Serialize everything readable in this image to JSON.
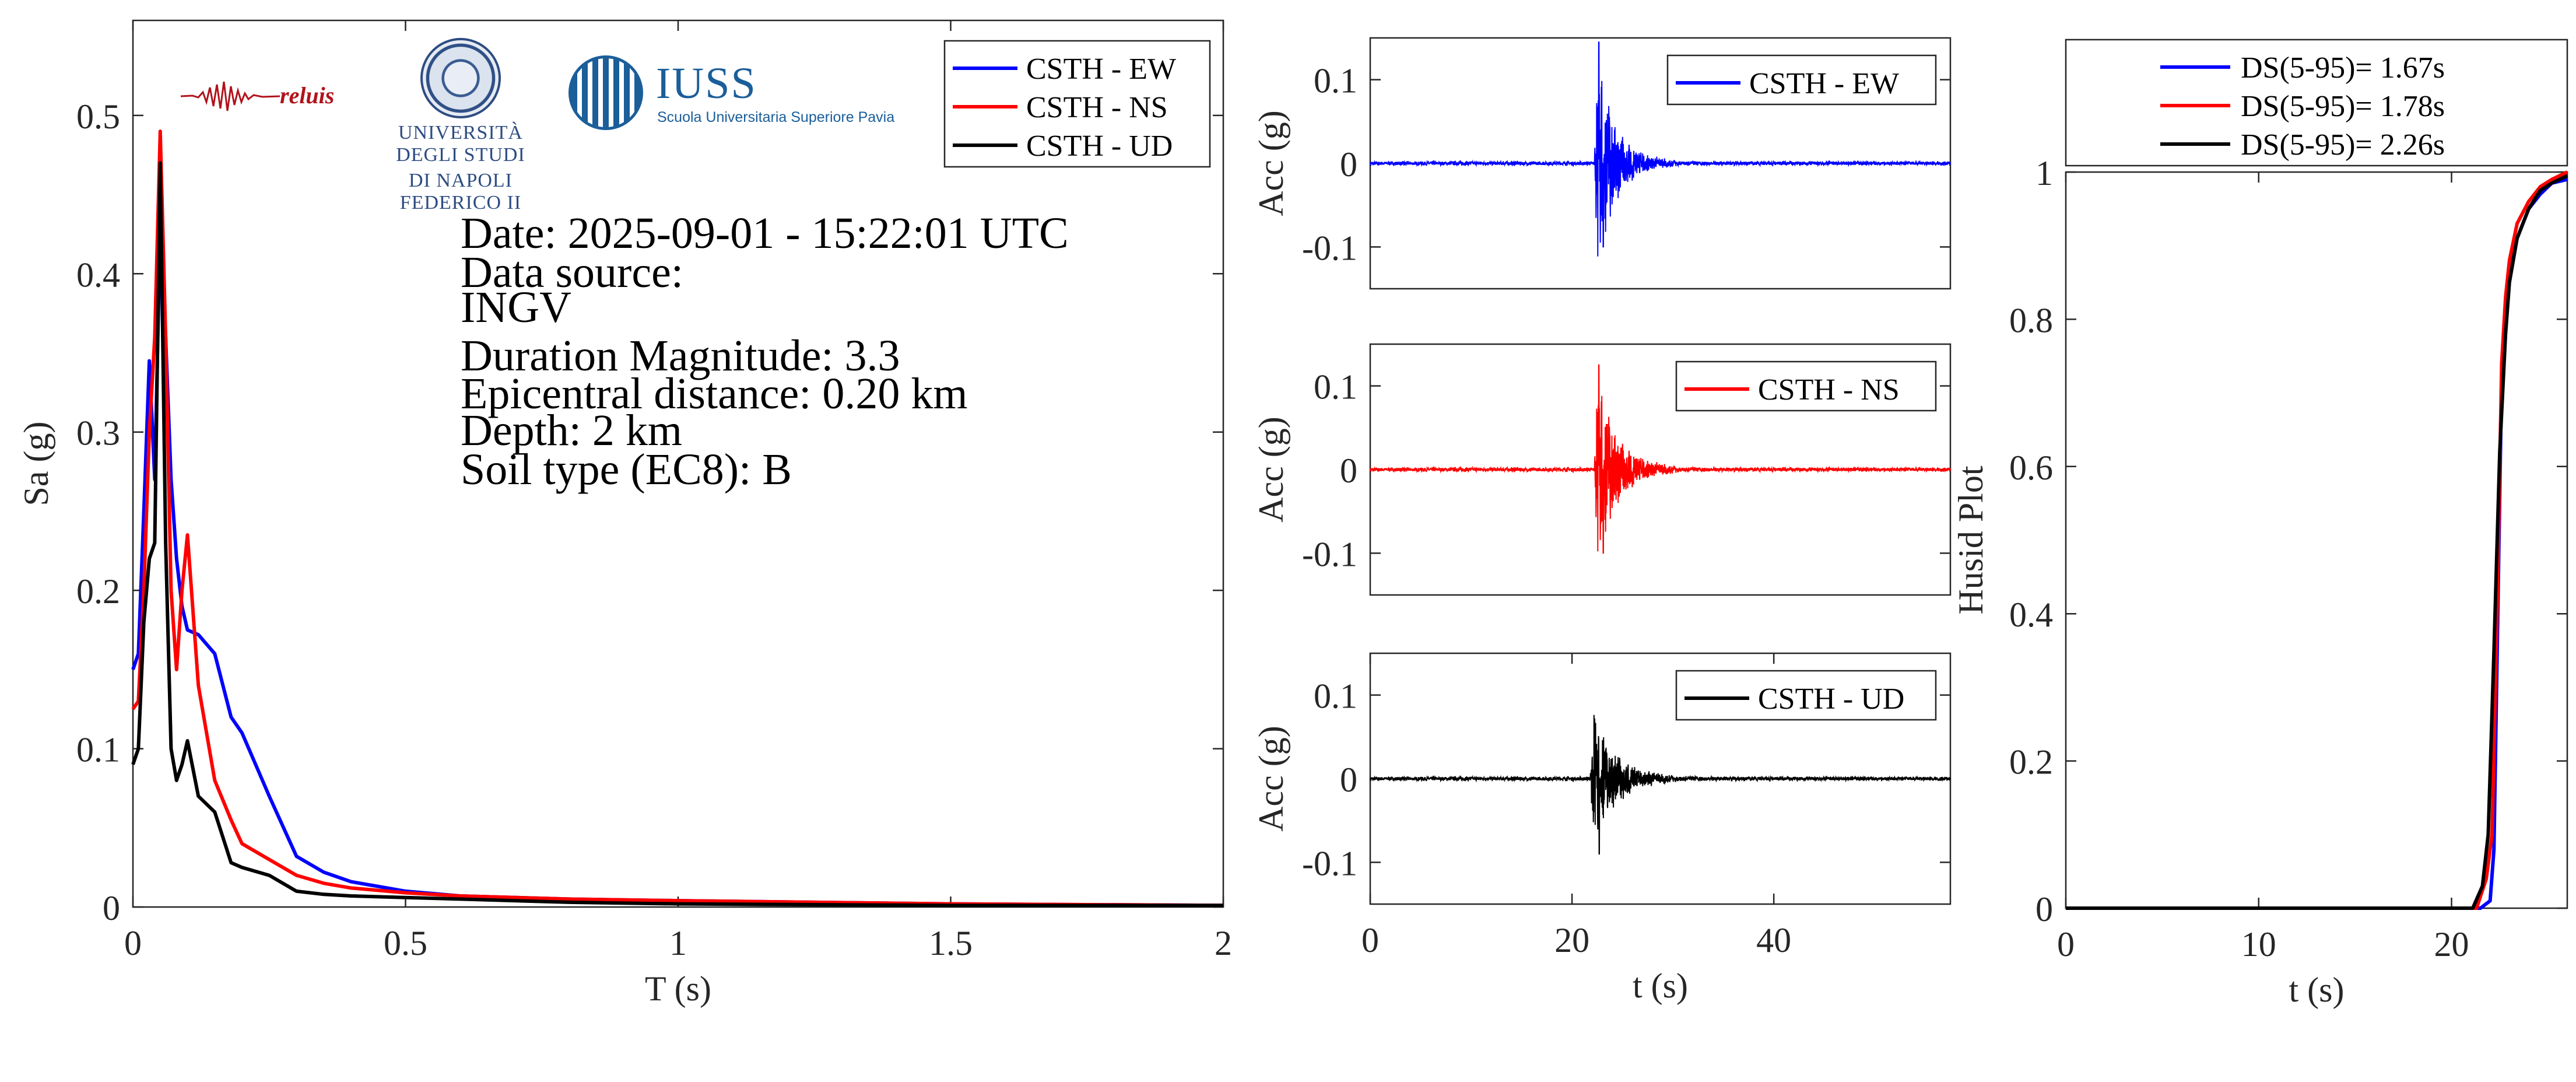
{
  "page": {
    "background": "#ffffff"
  },
  "logos": {
    "reluis": {
      "name": "reluis-logo",
      "text": "reluis"
    },
    "unina": {
      "name": "unina-logo",
      "text_line1": "UNIVERSITÀ DEGLI STUDI",
      "text_line2": "DI NAPOLI FEDERICO II"
    },
    "iuss": {
      "name": "iuss-logo",
      "text": "IUSS",
      "subtitle": "Scuola Universitaria Superiore Pavia"
    }
  },
  "colors": {
    "EW": "#0000ff",
    "NS": "#ff0000",
    "UD": "#000000"
  },
  "chart_data": [
    {
      "id": "response-spectrum",
      "type": "line",
      "xlabel": "T (s)",
      "ylabel": "Sa (g)",
      "xlim": [
        0,
        2
      ],
      "ylim": [
        0,
        0.56
      ],
      "xticks": [
        0,
        0.5,
        1,
        1.5,
        2
      ],
      "xtick_labels": [
        "0",
        "0.5",
        "1",
        "1.5",
        "2"
      ],
      "yticks": [
        0,
        0.1,
        0.2,
        0.3,
        0.4,
        0.5
      ],
      "ytick_labels": [
        "0",
        "0.1",
        "0.2",
        "0.3",
        "0.4",
        "0.5"
      ],
      "grid": false,
      "legend_position": "top-right",
      "annotations": [
        "Date: 2025-09-01 - 15:22:01 UTC",
        "Data source:",
        "INGV",
        "Duration Magnitude: 3.3",
        "Epicentral distance: 0.20 km",
        "Depth: 2 km",
        "Soil type (EC8): B"
      ],
      "series": [
        {
          "name": "CSTH - EW",
          "color": "#0000ff",
          "x": [
            0,
            0.01,
            0.02,
            0.03,
            0.04,
            0.05,
            0.06,
            0.07,
            0.08,
            0.09,
            0.1,
            0.12,
            0.15,
            0.18,
            0.2,
            0.25,
            0.3,
            0.35,
            0.4,
            0.5,
            0.6,
            0.8,
            1,
            1.5,
            2
          ],
          "y": [
            0.15,
            0.16,
            0.25,
            0.345,
            0.27,
            0.43,
            0.36,
            0.27,
            0.22,
            0.19,
            0.175,
            0.172,
            0.16,
            0.12,
            0.11,
            0.07,
            0.032,
            0.022,
            0.016,
            0.01,
            0.007,
            0.005,
            0.004,
            0.002,
            0.001
          ]
        },
        {
          "name": "CSTH - NS",
          "color": "#ff0000",
          "x": [
            0,
            0.01,
            0.02,
            0.03,
            0.04,
            0.05,
            0.06,
            0.07,
            0.08,
            0.09,
            0.1,
            0.12,
            0.15,
            0.18,
            0.2,
            0.25,
            0.3,
            0.35,
            0.4,
            0.5,
            0.6,
            0.8,
            1,
            1.5,
            2
          ],
          "y": [
            0.125,
            0.13,
            0.2,
            0.3,
            0.36,
            0.49,
            0.36,
            0.2,
            0.15,
            0.2,
            0.235,
            0.14,
            0.08,
            0.055,
            0.04,
            0.03,
            0.02,
            0.015,
            0.012,
            0.009,
            0.007,
            0.005,
            0.004,
            0.002,
            0.001
          ]
        },
        {
          "name": "CSTH - UD",
          "color": "#000000",
          "x": [
            0,
            0.01,
            0.02,
            0.03,
            0.04,
            0.05,
            0.06,
            0.07,
            0.08,
            0.09,
            0.1,
            0.12,
            0.15,
            0.18,
            0.2,
            0.25,
            0.3,
            0.35,
            0.4,
            0.5,
            0.6,
            0.8,
            1,
            1.5,
            2
          ],
          "y": [
            0.09,
            0.1,
            0.18,
            0.22,
            0.23,
            0.47,
            0.23,
            0.1,
            0.08,
            0.09,
            0.105,
            0.07,
            0.06,
            0.028,
            0.025,
            0.02,
            0.01,
            0.008,
            0.007,
            0.006,
            0.005,
            0.003,
            0.002,
            0.001,
            0.001
          ]
        }
      ]
    },
    {
      "id": "acc-ew",
      "type": "line",
      "ylabel": "Acc (g)",
      "xlim": [
        0,
        57.5
      ],
      "ylim": [
        -0.15,
        0.15
      ],
      "yticks": [
        -0.1,
        0,
        0.1
      ],
      "ytick_labels": [
        "-0.1",
        "0",
        "0.1"
      ],
      "legend_position": "top-right",
      "series": [
        {
          "name": "CSTH - EW",
          "color": "#0000ff",
          "onset": 22.2,
          "peak_pos": 0.145,
          "peak_neg": -0.1,
          "decay": 2.0,
          "noise": 0.002
        }
      ]
    },
    {
      "id": "acc-ns",
      "type": "line",
      "ylabel": "Acc (g)",
      "xlim": [
        0,
        57.5
      ],
      "ylim": [
        -0.15,
        0.15
      ],
      "yticks": [
        -0.1,
        0,
        0.1
      ],
      "ytick_labels": [
        "-0.1",
        "0",
        "0.1"
      ],
      "legend_position": "top-right",
      "series": [
        {
          "name": "CSTH - NS",
          "color": "#ff0000",
          "onset": 22.2,
          "peak_pos": 0.125,
          "peak_neg": -0.1,
          "decay": 2.2,
          "noise": 0.002
        }
      ]
    },
    {
      "id": "acc-ud",
      "type": "line",
      "xlabel": "t (s)",
      "ylabel": "Acc (g)",
      "xlim": [
        0,
        57.5
      ],
      "ylim": [
        -0.15,
        0.15
      ],
      "xticks": [
        0,
        20,
        40
      ],
      "xtick_labels": [
        "0",
        "20",
        "40"
      ],
      "yticks": [
        -0.1,
        0,
        0.1
      ],
      "ytick_labels": [
        "-0.1",
        "0",
        "0.1"
      ],
      "legend_position": "top-right",
      "series": [
        {
          "name": "CSTH - UD",
          "color": "#000000",
          "onset": 21.8,
          "peak_pos": 0.072,
          "peak_neg": -0.09,
          "decay": 2.5,
          "noise": 0.002
        }
      ]
    },
    {
      "id": "husid",
      "type": "line",
      "xlabel": "t (s)",
      "ylabel": "Husid Plot",
      "xlim": [
        0,
        26
      ],
      "ylim": [
        0,
        1
      ],
      "xticks": [
        0,
        10,
        20
      ],
      "xtick_labels": [
        "0",
        "10",
        "20"
      ],
      "yticks": [
        0,
        0.2,
        0.4,
        0.6,
        0.8,
        1
      ],
      "ytick_labels": [
        "0",
        "0.2",
        "0.4",
        "0.6",
        "0.8",
        "1"
      ],
      "legend_position": "top (outside)",
      "series": [
        {
          "name": "DS(5-95)= 1.67s",
          "color": "#0000ff",
          "x": [
            0,
            21.5,
            22,
            22.2,
            22.4,
            22.6,
            22.8,
            23,
            23.4,
            24,
            24.6,
            25.2,
            26
          ],
          "y": [
            0,
            0,
            0.01,
            0.08,
            0.4,
            0.72,
            0.8,
            0.86,
            0.91,
            0.95,
            0.97,
            0.985,
            0.99
          ]
        },
        {
          "name": "DS(5-95)= 1.78s",
          "color": "#ff0000",
          "x": [
            0,
            21.3,
            21.8,
            22.1,
            22.4,
            22.6,
            22.8,
            23,
            23.4,
            24,
            24.6,
            25.2,
            26
          ],
          "y": [
            0,
            0,
            0.04,
            0.1,
            0.45,
            0.74,
            0.83,
            0.88,
            0.93,
            0.96,
            0.98,
            0.99,
            1.0
          ]
        },
        {
          "name": "DS(5-95)= 2.26s",
          "color": "#000000",
          "x": [
            0,
            21.1,
            21.6,
            21.9,
            22.2,
            22.5,
            22.8,
            23,
            23.4,
            24,
            24.6,
            25.2,
            26
          ],
          "y": [
            0,
            0,
            0.03,
            0.1,
            0.35,
            0.62,
            0.78,
            0.85,
            0.91,
            0.95,
            0.975,
            0.985,
            0.995
          ]
        }
      ]
    }
  ]
}
